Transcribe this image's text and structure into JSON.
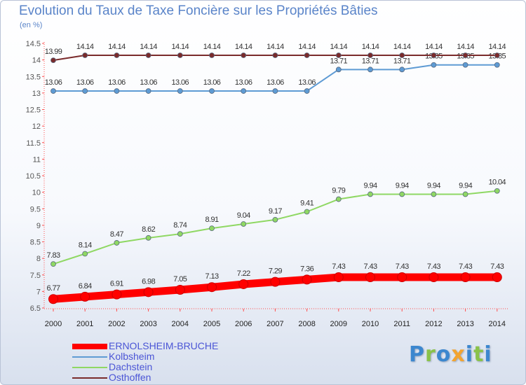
{
  "title": "Evolution du Taux de Taxe Foncière sur les Propriétés Bâties",
  "subtitle": "(en %)",
  "brand": {
    "letters": [
      "P",
      "r",
      "o",
      "x",
      "i",
      "t",
      "i"
    ],
    "colors": [
      "#3c87cf",
      "#8ac24a",
      "#3c87cf",
      "#f2a431",
      "#3c87cf",
      "#8ac24a",
      "#3c87cf"
    ]
  },
  "chart_data": {
    "type": "line",
    "title": "Evolution du Taux de Taxe Foncière sur les Propriétés Bâties",
    "ylabel": "(en %)",
    "xlabel": "",
    "ylim": [
      6.5,
      14.5
    ],
    "ytick_step": 0.5,
    "yticks": [
      "6.5",
      "7",
      "7.5",
      "8",
      "8.5",
      "9",
      "9.5",
      "10",
      "10.5",
      "11",
      "11.5",
      "12",
      "12.5",
      "13",
      "13.5",
      "14",
      "14.5"
    ],
    "categories": [
      "2000",
      "2001",
      "2002",
      "2003",
      "2004",
      "2005",
      "2006",
      "2007",
      "2008",
      "2009",
      "2010",
      "2011",
      "2012",
      "2013",
      "2014"
    ],
    "grid": false,
    "legend_position": "bottom-left",
    "series": [
      {
        "name": "ERNOLSHEIM-BRUCHE",
        "color": "#ff0000",
        "emphasis": true,
        "values": [
          6.77,
          6.84,
          6.91,
          6.98,
          7.05,
          7.13,
          7.22,
          7.29,
          7.36,
          7.43,
          7.43,
          7.43,
          7.43,
          7.43,
          7.43
        ],
        "labels": [
          "6.77",
          "6.84",
          "6.91",
          "6.98",
          "7.05",
          "7.13",
          "7.22",
          "7.29",
          "7.36",
          "7.43",
          "7.43",
          "7.43",
          "7.43",
          "7.43",
          "7.43"
        ]
      },
      {
        "name": "Kolbsheim",
        "color": "#5e9bd4",
        "emphasis": false,
        "values": [
          13.06,
          13.06,
          13.06,
          13.06,
          13.06,
          13.06,
          13.06,
          13.06,
          13.06,
          13.71,
          13.71,
          13.71,
          13.85,
          13.85,
          13.85
        ],
        "labels": [
          "13.06",
          "13.06",
          "13.06",
          "13.06",
          "13.06",
          "13.06",
          "13.06",
          "13.06",
          "13.06",
          "13.71",
          "13.71",
          "13.71",
          "13.85",
          "13.85",
          "13.85"
        ]
      },
      {
        "name": "Dachstein",
        "color": "#8fd863",
        "emphasis": false,
        "values": [
          7.83,
          8.14,
          8.47,
          8.62,
          8.74,
          8.91,
          9.04,
          9.17,
          9.41,
          9.79,
          9.94,
          9.94,
          9.94,
          9.94,
          10.04
        ],
        "labels": [
          "7.83",
          "8.14",
          "8.47",
          "8.62",
          "8.74",
          "8.91",
          "9.04",
          "9.17",
          "9.41",
          "9.79",
          "9.94",
          "9.94",
          "9.94",
          "9.94",
          "10.04"
        ]
      },
      {
        "name": "Osthoffen",
        "color": "#7a2b2b",
        "emphasis": false,
        "values": [
          13.99,
          14.14,
          14.14,
          14.14,
          14.14,
          14.14,
          14.14,
          14.14,
          14.14,
          14.14,
          14.14,
          14.14,
          14.14,
          14.14,
          14.14
        ],
        "labels": [
          "13.99",
          "14.14",
          "14.14",
          "14.14",
          "14.14",
          "14.14",
          "14.14",
          "14.14",
          "14.14",
          "14.14",
          "14.14",
          "14.14",
          "14.14",
          "14.14",
          "14.14"
        ]
      }
    ]
  }
}
